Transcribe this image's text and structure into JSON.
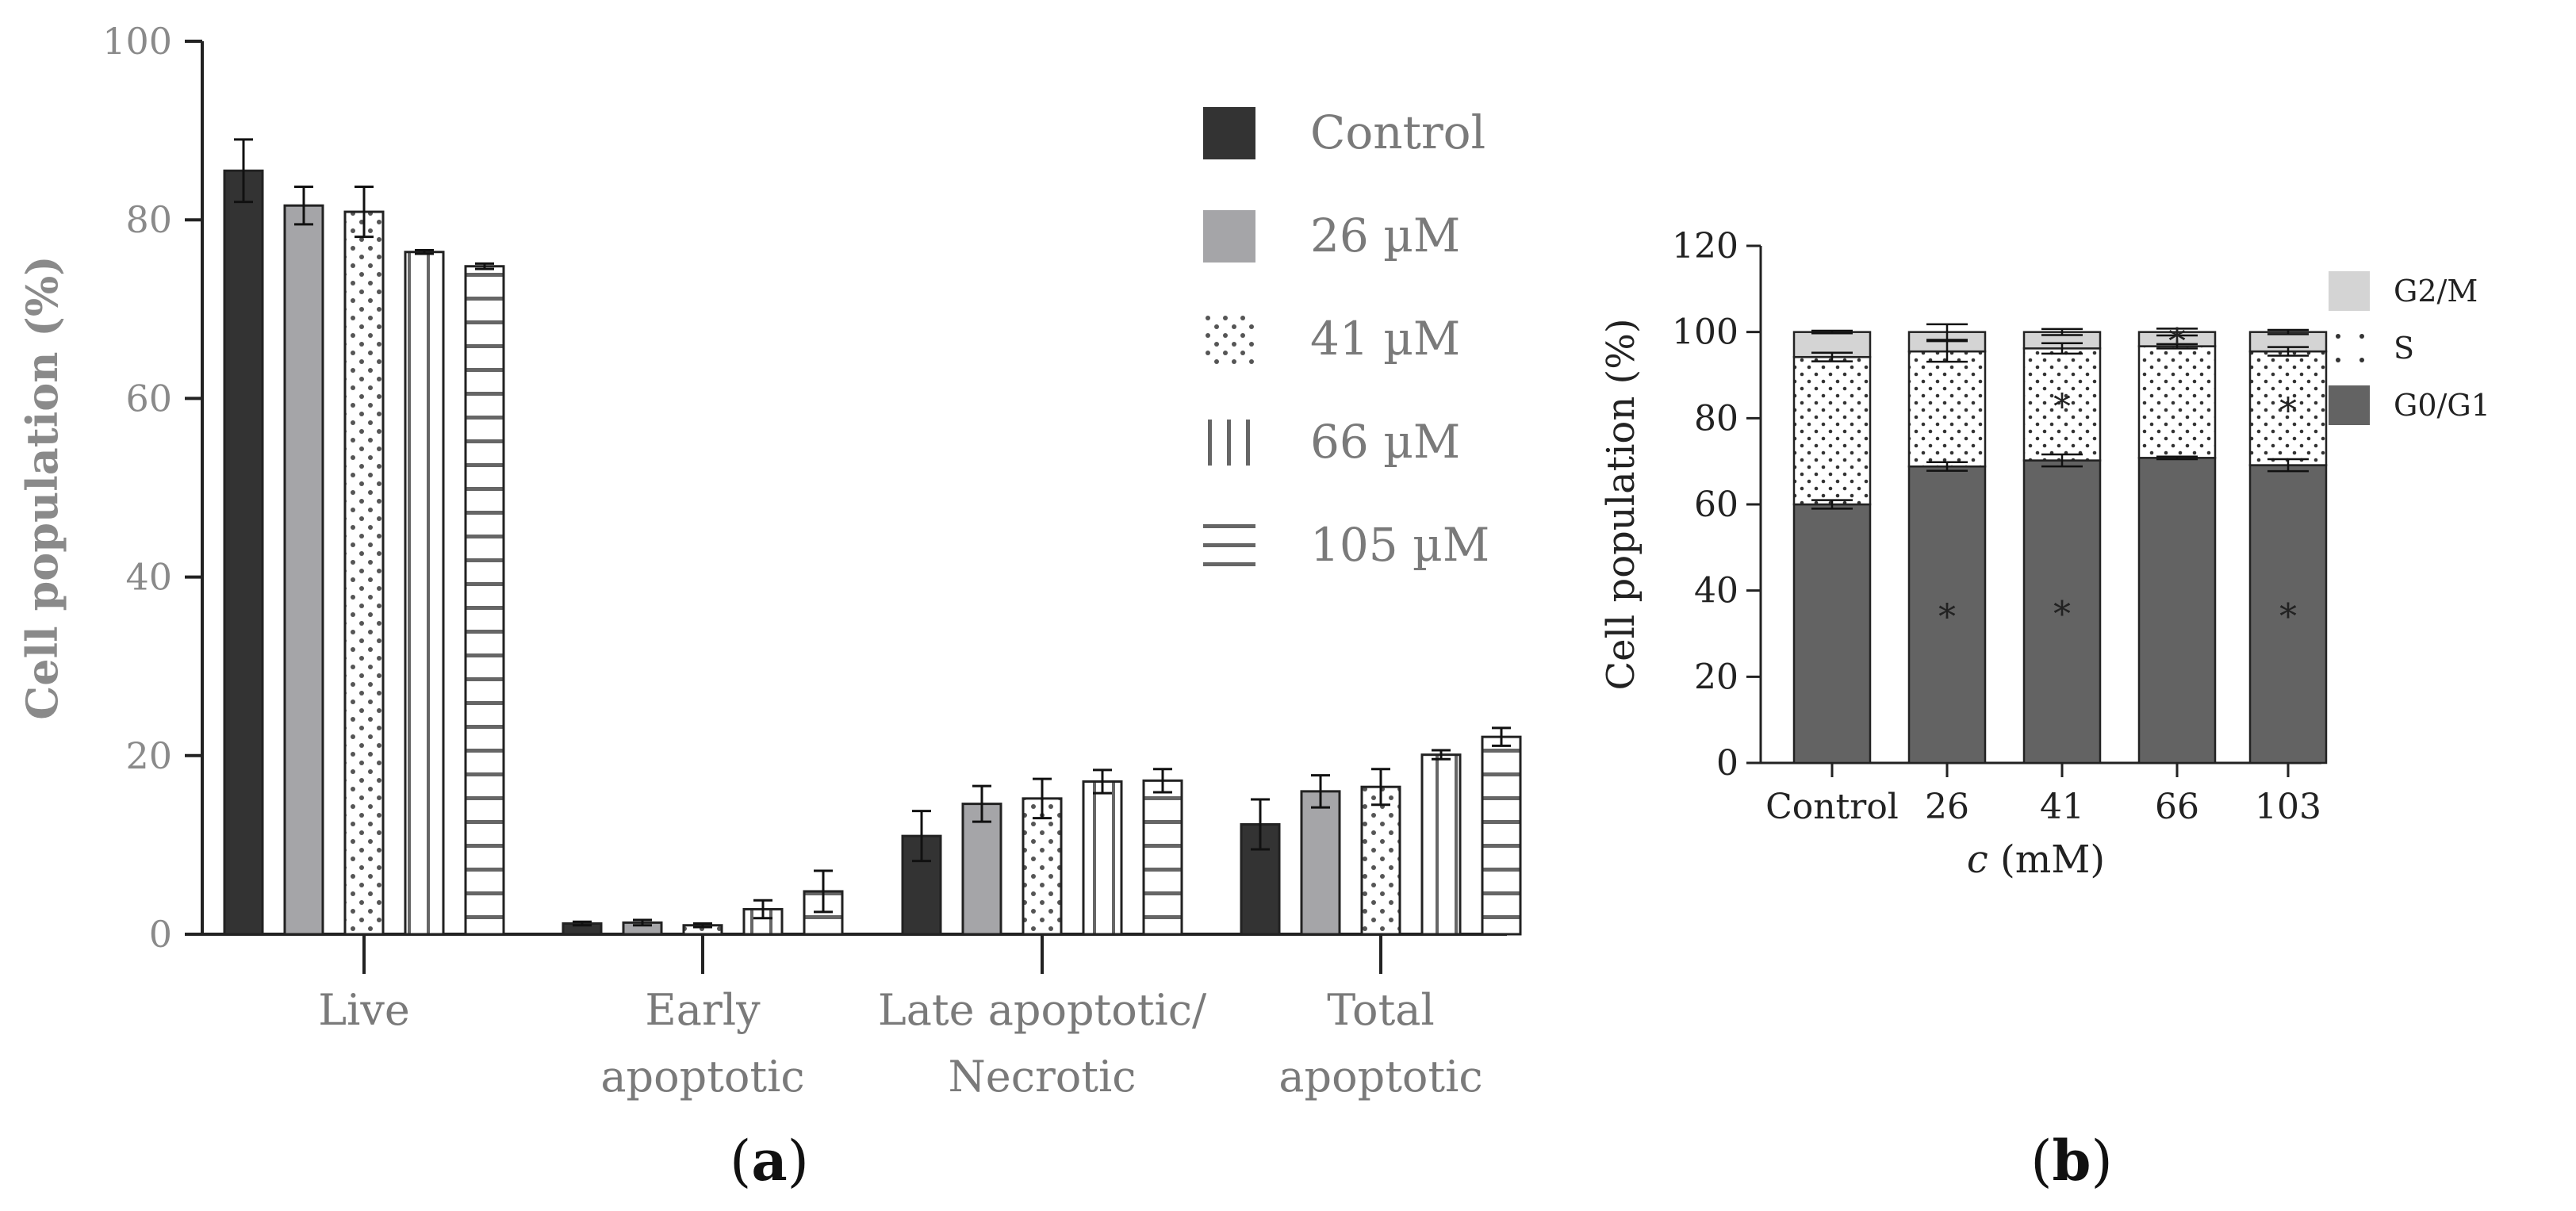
{
  "chart_data": [
    {
      "type": "bar",
      "panel_label": "a",
      "title": "",
      "xlabel": "",
      "ylabel": "Cell population (%)",
      "ylim": [
        0,
        100
      ],
      "yticks": [
        "0",
        "20",
        "40",
        "60",
        "80",
        "100"
      ],
      "categories": [
        [
          "Live"
        ],
        [
          "Early",
          "apoptotic"
        ],
        [
          "Late apoptotic/",
          "Necrotic"
        ],
        [
          "Total",
          "apoptotic"
        ]
      ],
      "legend_position": "top-right",
      "series": [
        {
          "name": "Control",
          "pattern": "solid-dark",
          "color": "#333333",
          "values": [
            85.5,
            1.2,
            11.0,
            12.3
          ],
          "errors": [
            3.5,
            0.2,
            2.8,
            2.8
          ]
        },
        {
          "name": "26 µM",
          "pattern": "solid-gray",
          "color": "#a5a5a8",
          "values": [
            81.6,
            1.3,
            14.6,
            16.0
          ],
          "errors": [
            2.1,
            0.3,
            2.0,
            1.8
          ]
        },
        {
          "name": "41 µM",
          "pattern": "dots",
          "color": "#ffffff",
          "values": [
            80.9,
            1.0,
            15.2,
            16.5
          ],
          "errors": [
            2.8,
            0.2,
            2.2,
            2.0
          ]
        },
        {
          "name": "66 µM",
          "pattern": "vertical-lines",
          "color": "#ffffff",
          "values": [
            76.4,
            2.8,
            17.1,
            20.1
          ],
          "errors": [
            0.2,
            1.0,
            1.3,
            0.5
          ]
        },
        {
          "name": "105 µM",
          "pattern": "horizontal-lines",
          "color": "#ffffff",
          "values": [
            74.8,
            4.8,
            17.2,
            22.1
          ],
          "errors": [
            0.3,
            2.3,
            1.3,
            1.0
          ]
        }
      ]
    },
    {
      "type": "bar",
      "stacked": true,
      "panel_label": "b",
      "title": "",
      "xlabel": "c (mM)",
      "xlabel_italic": "c",
      "xlabel_rest": " (mM)",
      "ylabel": "Cell population (%)",
      "ylim": [
        0,
        120
      ],
      "yticks": [
        "0",
        "20",
        "40",
        "60",
        "80",
        "100",
        "120"
      ],
      "categories": [
        "Control",
        "26",
        "41",
        "66",
        "103"
      ],
      "legend_position": "right",
      "series": [
        {
          "name": "G0/G1",
          "pattern": "solid",
          "color": "#636363",
          "values": [
            60.0,
            68.8,
            70.2,
            70.8,
            69.1
          ],
          "errors": [
            1.0,
            1.0,
            1.4,
            0.3,
            1.4
          ],
          "significant": [
            false,
            true,
            true,
            false,
            true
          ]
        },
        {
          "name": "S",
          "pattern": "dots",
          "color": "#ffffff",
          "values": [
            34.2,
            26.7,
            26.0,
            25.9,
            26.4
          ],
          "errors": [
            1.0,
            2.4,
            1.2,
            0.5,
            1.0
          ],
          "significant": [
            false,
            false,
            true,
            false,
            true
          ]
        },
        {
          "name": "G2/M",
          "pattern": "solid",
          "color": "#d4d4d4",
          "values": [
            5.8,
            4.5,
            3.8,
            3.3,
            4.5
          ],
          "errors": [
            0.3,
            1.8,
            0.7,
            0.8,
            0.5
          ],
          "significant": [
            false,
            false,
            false,
            true,
            false
          ]
        }
      ],
      "significance_marker": "*"
    }
  ]
}
